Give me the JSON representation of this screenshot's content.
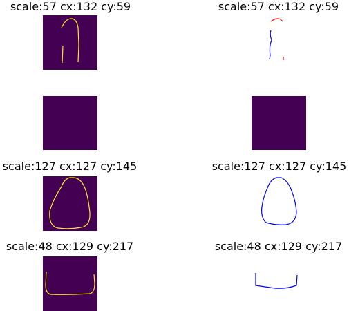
{
  "figure": {
    "colors": {
      "colormap_background": "#440154",
      "colormap_foreground": "#fde725",
      "blank_background": "#ffffff",
      "curve_red": "#ff0000",
      "curve_blue": "#0000ff"
    }
  },
  "chart_data": [
    {
      "type": "heatmap",
      "title": "scale:57 cx:132 cy:59",
      "colormap": "viridis",
      "content": "binary mask with yellow open contour strokes on purple background"
    },
    {
      "type": "line",
      "title": "scale:57 cx:132 cy:59",
      "content": "open contour strokes, red top arc and blue left stroke, on white"
    },
    {
      "type": "heatmap",
      "title": "",
      "colormap": "viridis",
      "content": "empty mask, uniform purple"
    },
    {
      "type": "heatmap",
      "title": "",
      "colormap": "viridis",
      "content": "empty mask, uniform purple"
    },
    {
      "type": "heatmap",
      "title": "scale:127 cx:127 cy:145",
      "colormap": "viridis",
      "content": "binary mask with yellow closed egg-shaped contour on purple background"
    },
    {
      "type": "line",
      "title": "scale:127 cx:127 cy:145",
      "content": "closed egg-shaped contour in blue on white"
    },
    {
      "type": "heatmap",
      "title": "scale:48 cx:129 cy:217",
      "colormap": "viridis",
      "content": "binary mask with yellow U-shaped contour on purple background"
    },
    {
      "type": "line",
      "title": "scale:48 cx:129 cy:217",
      "content": "U-shaped contour in blue on white"
    }
  ]
}
